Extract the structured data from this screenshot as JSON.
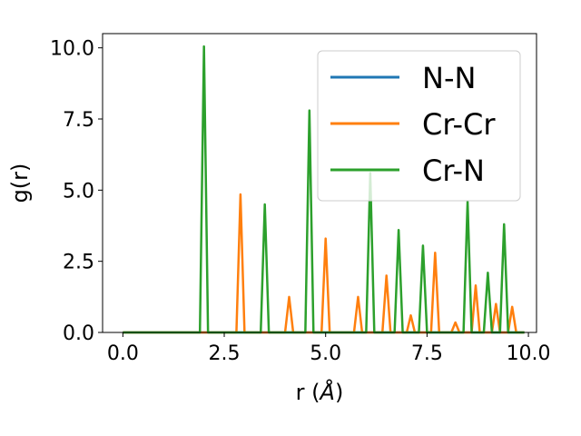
{
  "chart_data": {
    "type": "line",
    "xlabel_prefix": "r (",
    "xlabel_unit": "Å",
    "xlabel_suffix": ")",
    "ylabel": "g(r)",
    "xlim": [
      -0.5,
      10.2
    ],
    "ylim": [
      0,
      10.5
    ],
    "xticks": [
      0.0,
      2.5,
      5.0,
      7.5,
      10.0
    ],
    "xtick_labels": [
      "0.0",
      "2.5",
      "5.0",
      "7.5",
      "10.0"
    ],
    "yticks": [
      0.0,
      2.5,
      5.0,
      7.5,
      10.0
    ],
    "ytick_labels": [
      "0.0",
      "2.5",
      "5.0",
      "7.5",
      "10.0"
    ],
    "grid": false,
    "legend_position": "top-right",
    "series": [
      {
        "name": "N-N",
        "color": "#1f77b4",
        "x": [
          0,
          9.9
        ],
        "y": [
          0,
          0
        ]
      },
      {
        "name": "Cr-Cr",
        "color": "#ff7f0e",
        "x": [
          0,
          2.8,
          2.9,
          3.0,
          4.0,
          4.1,
          4.2,
          4.9,
          5.0,
          5.1,
          5.7,
          5.8,
          5.9,
          6.4,
          6.5,
          6.6,
          7.0,
          7.1,
          7.2,
          7.6,
          7.7,
          7.8,
          8.1,
          8.2,
          8.3,
          8.6,
          8.7,
          8.8,
          9.1,
          9.2,
          9.3,
          9.5,
          9.6,
          9.7,
          9.9
        ],
        "y": [
          0,
          0,
          4.85,
          0,
          0,
          1.25,
          0,
          0,
          3.3,
          0,
          0,
          1.25,
          0,
          0,
          2.0,
          0,
          0,
          0.6,
          0,
          0,
          2.8,
          0,
          0,
          0.35,
          0,
          0,
          1.65,
          0,
          0,
          1.0,
          0,
          0,
          0.9,
          0,
          0
        ]
      },
      {
        "name": "Cr-N",
        "color": "#2ca02c",
        "x": [
          0,
          1.9,
          2.0,
          2.1,
          3.4,
          3.5,
          3.6,
          4.5,
          4.6,
          4.7,
          6.0,
          6.1,
          6.2,
          6.7,
          6.8,
          6.9,
          7.3,
          7.4,
          7.5,
          8.4,
          8.5,
          8.6,
          8.9,
          9.0,
          9.1,
          9.3,
          9.4,
          9.5,
          9.9
        ],
        "y": [
          0,
          0,
          10.05,
          0,
          0,
          4.5,
          0,
          0,
          7.8,
          0,
          0,
          5.6,
          0,
          0,
          3.6,
          0,
          0,
          3.05,
          0,
          0,
          4.6,
          0,
          0,
          2.1,
          0,
          0,
          3.8,
          0,
          0
        ]
      }
    ]
  }
}
